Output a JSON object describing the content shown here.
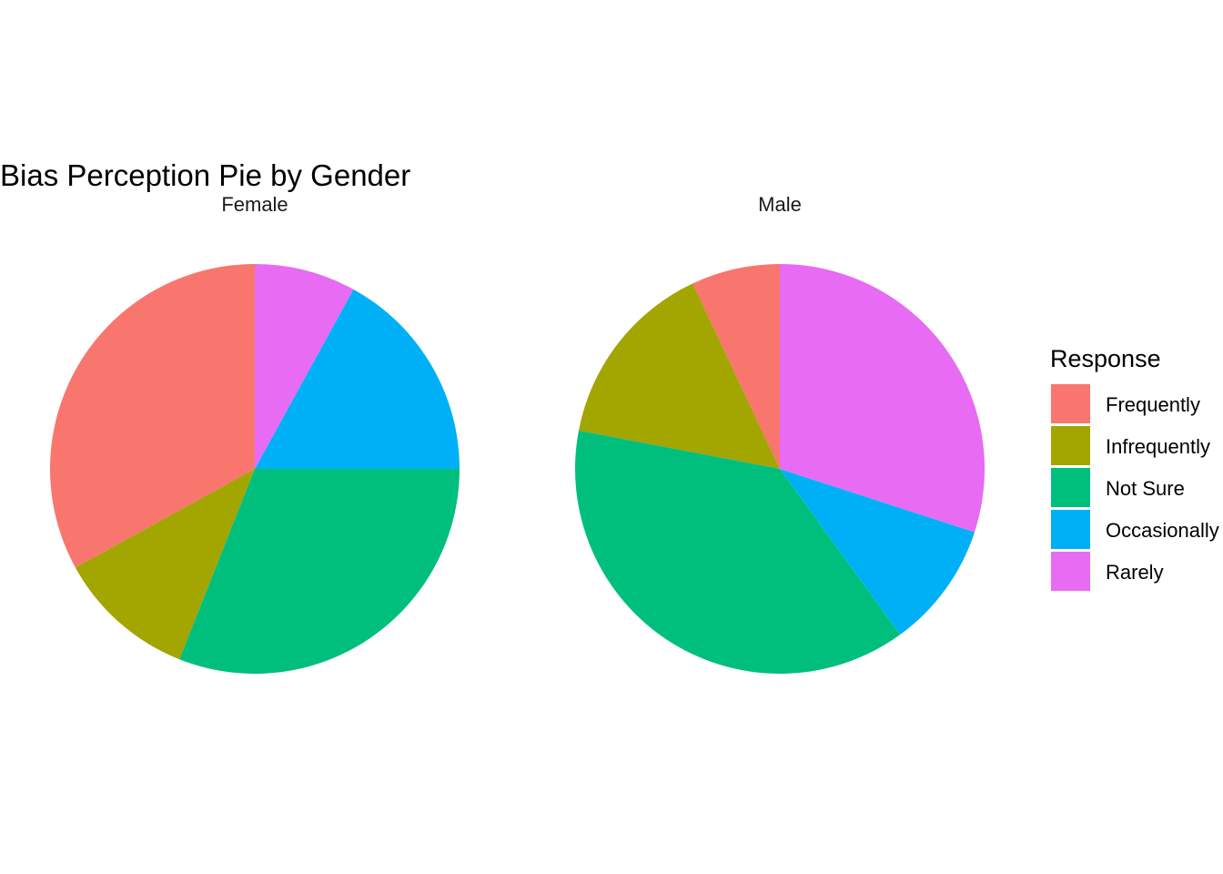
{
  "chart_data": {
    "type": "pie",
    "title": "Bias Perception Pie by Gender",
    "categories": [
      "Frequently",
      "Infrequently",
      "Not Sure",
      "Occasionally",
      "Rarely"
    ],
    "colors": {
      "Frequently": "#F8766D",
      "Infrequently": "#A3A500",
      "Not Sure": "#00BF7D",
      "Occasionally": "#00B0F6",
      "Rarely": "#E76BF3"
    },
    "facets": [
      {
        "label": "Female",
        "values": {
          "Frequently": 33,
          "Infrequently": 11,
          "Not Sure": 31,
          "Occasionally": 17,
          "Rarely": 8
        }
      },
      {
        "label": "Male",
        "values": {
          "Frequently": 7,
          "Infrequently": 15,
          "Not Sure": 38,
          "Occasionally": 10,
          "Rarely": 30
        }
      }
    ],
    "legend": {
      "title": "Response",
      "position": "right"
    }
  }
}
